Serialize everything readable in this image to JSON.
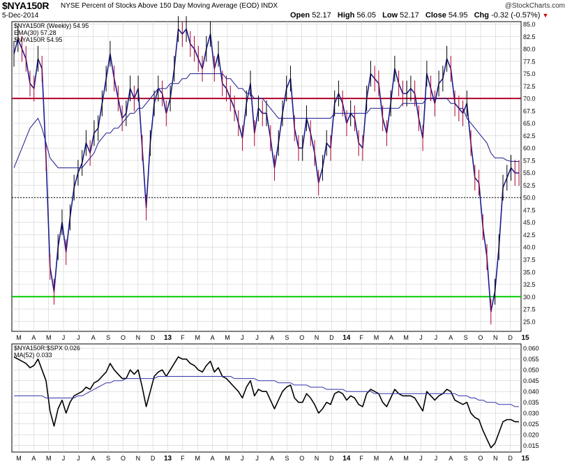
{
  "header": {
    "ticker": "$NYA150R",
    "description": "NYSE Percent of Stocks Above 150 Day Moving Average (EOD)",
    "exchange": "INDX",
    "date": "5-Dec-2014",
    "copyright": "@StockCharts.com",
    "open_label": "Open",
    "open": "52.17",
    "high_label": "High",
    "high": "56.05",
    "low_label": "Low",
    "low": "52.17",
    "close_label": "Close",
    "close": "54.95",
    "chg_label": "Chg",
    "chg": "-0.32 (-0.57%)"
  },
  "colors": {
    "price_line": "#1a1a8c",
    "ema_line": "#1a1a8c",
    "red_line": "#b0002a",
    "green_line": "#00cc00",
    "grid": "#d0d0d0",
    "ratio_line": "#000000",
    "ratio_ma": "#3333aa"
  },
  "chart_data": [
    {
      "type": "line",
      "panel": "main",
      "title": "$NYA150R (Weekly) 54.95",
      "xlabel": "",
      "ylabel": "",
      "ylim": [
        23,
        85.5
      ],
      "y_ticks": [
        25.0,
        27.5,
        30.0,
        32.5,
        35.0,
        37.5,
        40.0,
        42.5,
        45.0,
        47.5,
        50.0,
        52.5,
        55.0,
        57.5,
        60.0,
        62.5,
        65.0,
        67.5,
        70.0,
        72.5,
        75.0,
        77.5,
        80.0,
        82.5,
        85.0
      ],
      "x_labels": [
        "M",
        "A",
        "M",
        "J",
        "J",
        "A",
        "S",
        "O",
        "N",
        "D",
        "13",
        "F",
        "M",
        "A",
        "M",
        "J",
        "J",
        "A",
        "S",
        "O",
        "N",
        "D",
        "14",
        "F",
        "M",
        "A",
        "M",
        "J",
        "J",
        "A",
        "S",
        "O",
        "N",
        "D",
        "15"
      ],
      "horizontal_lines": [
        {
          "value": 70.0,
          "style": "solid",
          "color": "#b0002a"
        },
        {
          "value": 50.0,
          "style": "dotted",
          "color": "#000000"
        },
        {
          "value": 30.0,
          "style": "solid",
          "color": "#00cc00"
        }
      ],
      "legend": [
        {
          "label": "$NYA150R (Weekly) 54.95"
        },
        {
          "label": "EMA(30) 57.28"
        },
        {
          "label": "$NYA150R 54.95"
        }
      ],
      "series": [
        {
          "name": "$NYA150R",
          "values": [
            79,
            82,
            80,
            78,
            73,
            72,
            78,
            76,
            58,
            36,
            31,
            40,
            45,
            39,
            46,
            52,
            55,
            57,
            61,
            59,
            63,
            64,
            69,
            74,
            79,
            74,
            70,
            66,
            67,
            72,
            70,
            72,
            60,
            48,
            61,
            69,
            72,
            71,
            67,
            70,
            76,
            84,
            83,
            84,
            81,
            80,
            78,
            76,
            80,
            83,
            76,
            79,
            73,
            72,
            70,
            68,
            65,
            62,
            69,
            73,
            63,
            68,
            67,
            67,
            62,
            56,
            61,
            67,
            72,
            74,
            64,
            60,
            60,
            66,
            63,
            59,
            53,
            56,
            61,
            60,
            69,
            71,
            69,
            65,
            67,
            66,
            61,
            60,
            70,
            75,
            74,
            73,
            66,
            63,
            69,
            76,
            73,
            71,
            71,
            72,
            71,
            66,
            62,
            75,
            72,
            69,
            73,
            74,
            78,
            76,
            69,
            68,
            67,
            69,
            61,
            54,
            53,
            44,
            38,
            27,
            31,
            40,
            52,
            54,
            56,
            55,
            54.95
          ]
        },
        {
          "name": "EMA(30)",
          "values": [
            56,
            58,
            60,
            62,
            64,
            65,
            66,
            64,
            61,
            58,
            57,
            56,
            56,
            56,
            56,
            56,
            56,
            56,
            57,
            58,
            59,
            61,
            62,
            63,
            63,
            64,
            64,
            65,
            66,
            67,
            67,
            68,
            68,
            69,
            70,
            71,
            72,
            72,
            72,
            73,
            73,
            73,
            74,
            74,
            75,
            75,
            75,
            75,
            75,
            75,
            75,
            75,
            75,
            74,
            74,
            73,
            72,
            72,
            71,
            71,
            70,
            70,
            70,
            69,
            68,
            67,
            66,
            66,
            66,
            66,
            66,
            66,
            66,
            66,
            66,
            66,
            66,
            66,
            66,
            66,
            67,
            67,
            67,
            67,
            67,
            67,
            67,
            67,
            67,
            68,
            68,
            68,
            68,
            68,
            68,
            68,
            68,
            69,
            69,
            69,
            69,
            69,
            69,
            70,
            70,
            70,
            70,
            70,
            70,
            69,
            69,
            68,
            68,
            66,
            65,
            64,
            63,
            62,
            61,
            59,
            58,
            58,
            58,
            57.5,
            57.3,
            57.28,
            57.28
          ]
        }
      ]
    },
    {
      "type": "line",
      "panel": "ratio",
      "title": "$NYA150R:$SPX 0.026",
      "xlabel": "",
      "ylabel": "",
      "ylim": [
        0.012,
        0.062
      ],
      "y_ticks": [
        0.015,
        0.02,
        0.025,
        0.03,
        0.035,
        0.04,
        0.045,
        0.05,
        0.055,
        0.06
      ],
      "x_labels": [
        "M",
        "A",
        "M",
        "J",
        "J",
        "A",
        "S",
        "O",
        "N",
        "D",
        "13",
        "F",
        "M",
        "A",
        "M",
        "J",
        "J",
        "A",
        "S",
        "O",
        "N",
        "D",
        "14",
        "F",
        "M",
        "A",
        "M",
        "J",
        "J",
        "A",
        "S",
        "O",
        "N",
        "D",
        "15"
      ],
      "legend": [
        {
          "label": "$NYA150R:$SPX 0.026"
        },
        {
          "label": "MA(52) 0.033"
        }
      ],
      "series": [
        {
          "name": "$NYA150R:$SPX",
          "values": [
            0.056,
            0.055,
            0.054,
            0.053,
            0.051,
            0.052,
            0.055,
            0.05,
            0.045,
            0.031,
            0.024,
            0.032,
            0.036,
            0.03,
            0.035,
            0.038,
            0.039,
            0.04,
            0.042,
            0.041,
            0.044,
            0.045,
            0.047,
            0.049,
            0.053,
            0.05,
            0.048,
            0.046,
            0.046,
            0.05,
            0.048,
            0.05,
            0.042,
            0.033,
            0.04,
            0.047,
            0.049,
            0.05,
            0.047,
            0.05,
            0.053,
            0.056,
            0.055,
            0.055,
            0.053,
            0.052,
            0.05,
            0.049,
            0.052,
            0.054,
            0.049,
            0.051,
            0.047,
            0.046,
            0.044,
            0.042,
            0.04,
            0.037,
            0.042,
            0.045,
            0.038,
            0.041,
            0.04,
            0.04,
            0.036,
            0.032,
            0.036,
            0.04,
            0.042,
            0.043,
            0.037,
            0.035,
            0.035,
            0.039,
            0.037,
            0.034,
            0.03,
            0.032,
            0.035,
            0.034,
            0.039,
            0.04,
            0.039,
            0.036,
            0.038,
            0.037,
            0.034,
            0.033,
            0.039,
            0.041,
            0.04,
            0.039,
            0.035,
            0.033,
            0.037,
            0.041,
            0.039,
            0.038,
            0.038,
            0.038,
            0.037,
            0.034,
            0.031,
            0.04,
            0.038,
            0.036,
            0.038,
            0.039,
            0.041,
            0.04,
            0.036,
            0.035,
            0.034,
            0.035,
            0.03,
            0.028,
            0.027,
            0.022,
            0.018,
            0.014,
            0.016,
            0.021,
            0.026,
            0.027,
            0.027,
            0.026,
            0.026
          ]
        },
        {
          "name": "MA(52)",
          "values": [
            0.038,
            0.038,
            0.038,
            0.038,
            0.038,
            0.038,
            0.038,
            0.038,
            0.037,
            0.037,
            0.037,
            0.037,
            0.037,
            0.037,
            0.037,
            0.037,
            0.038,
            0.038,
            0.039,
            0.04,
            0.041,
            0.042,
            0.043,
            0.044,
            0.044,
            0.045,
            0.045,
            0.045,
            0.046,
            0.046,
            0.046,
            0.046,
            0.046,
            0.046,
            0.046,
            0.046,
            0.047,
            0.047,
            0.047,
            0.047,
            0.047,
            0.047,
            0.047,
            0.047,
            0.047,
            0.047,
            0.047,
            0.047,
            0.047,
            0.047,
            0.047,
            0.047,
            0.047,
            0.047,
            0.047,
            0.046,
            0.046,
            0.046,
            0.046,
            0.046,
            0.046,
            0.045,
            0.045,
            0.045,
            0.045,
            0.045,
            0.044,
            0.044,
            0.044,
            0.044,
            0.043,
            0.043,
            0.043,
            0.043,
            0.042,
            0.042,
            0.042,
            0.042,
            0.041,
            0.041,
            0.041,
            0.041,
            0.041,
            0.04,
            0.04,
            0.04,
            0.04,
            0.04,
            0.04,
            0.04,
            0.039,
            0.039,
            0.039,
            0.039,
            0.039,
            0.039,
            0.039,
            0.039,
            0.039,
            0.039,
            0.039,
            0.039,
            0.039,
            0.039,
            0.039,
            0.039,
            0.039,
            0.039,
            0.039,
            0.039,
            0.039,
            0.038,
            0.038,
            0.038,
            0.037,
            0.037,
            0.036,
            0.036,
            0.035,
            0.035,
            0.035,
            0.034,
            0.034,
            0.034,
            0.034,
            0.033,
            0.033
          ]
        }
      ]
    }
  ]
}
